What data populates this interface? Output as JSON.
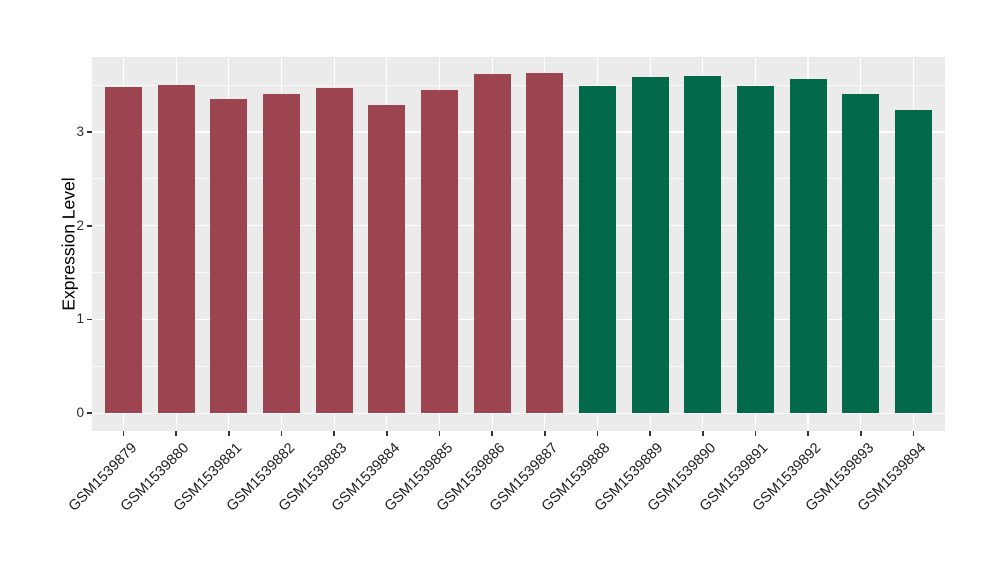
{
  "chart_data": {
    "type": "bar",
    "title": "",
    "xlabel": "",
    "ylabel": "Expression Level",
    "categories": [
      "GSM1539879",
      "GSM1539880",
      "GSM1539881",
      "GSM1539882",
      "GSM1539883",
      "GSM1539884",
      "GSM1539885",
      "GSM1539886",
      "GSM1539887",
      "GSM1539888",
      "GSM1539889",
      "GSM1539890",
      "GSM1539891",
      "GSM1539892",
      "GSM1539893",
      "GSM1539894"
    ],
    "values": [
      3.48,
      3.5,
      3.35,
      3.4,
      3.47,
      3.29,
      3.45,
      3.62,
      3.63,
      3.49,
      3.59,
      3.6,
      3.49,
      3.56,
      3.4,
      3.23
    ],
    "groups": [
      0,
      0,
      0,
      0,
      0,
      0,
      0,
      0,
      0,
      1,
      1,
      1,
      1,
      1,
      1,
      1
    ],
    "group_colors": [
      "#9C4551",
      "#026A4A"
    ],
    "ytick_labels": [
      "0",
      "1",
      "2",
      "3"
    ],
    "ytick_values": [
      0,
      1,
      2,
      3
    ],
    "y_minor_values": [
      0.5,
      1.5,
      2.5,
      3.5
    ],
    "ylim": [
      -0.19,
      3.8
    ],
    "bar_width_ratio": 0.7,
    "grid": "on",
    "legend_position": "none",
    "panel_bg_color": "#EBEBEB",
    "grid_color": "#FFFFFF"
  }
}
